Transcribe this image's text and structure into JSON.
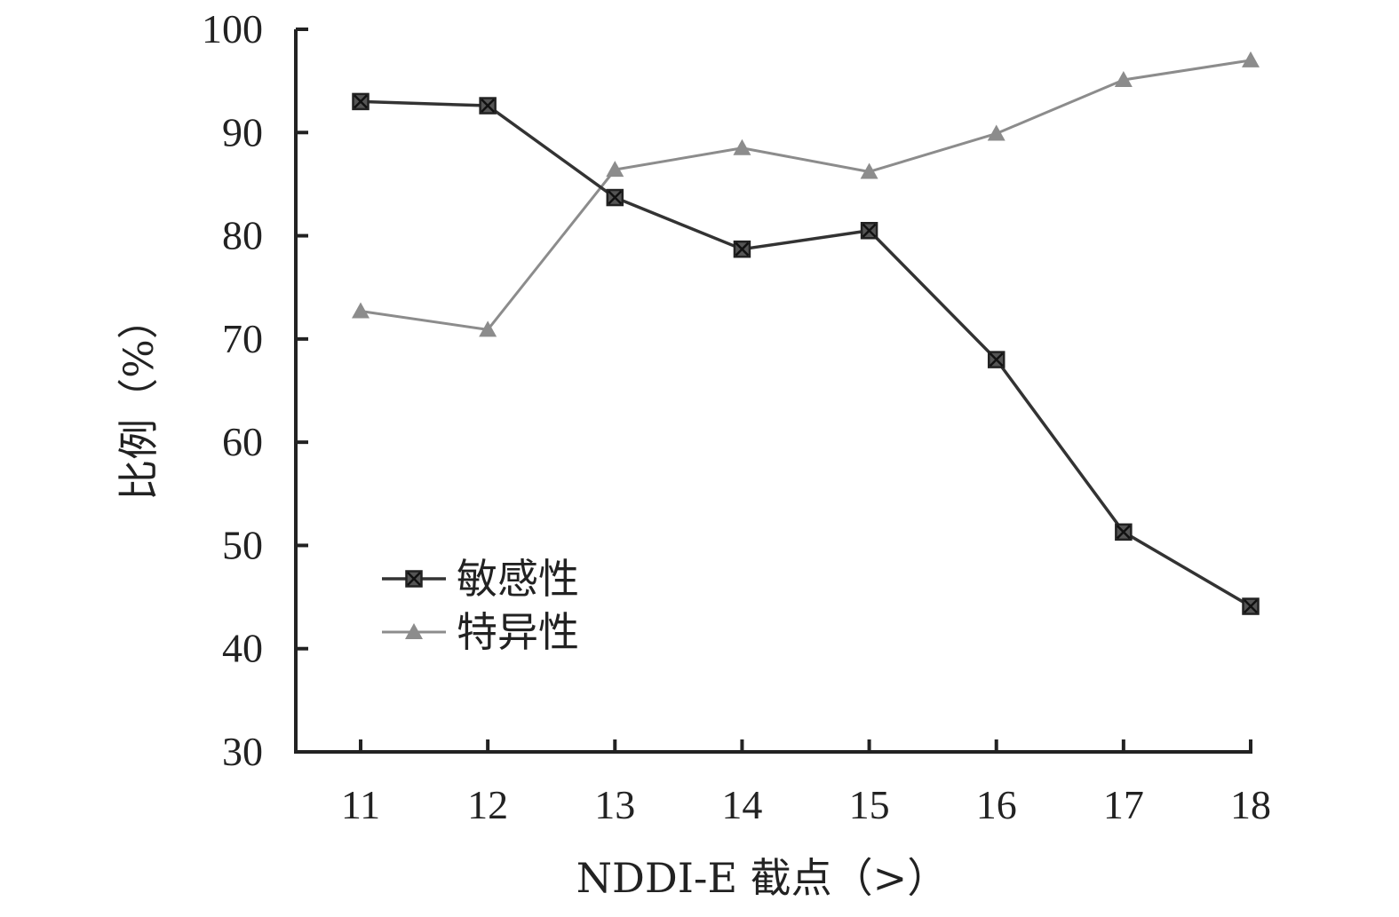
{
  "chart_data": {
    "type": "line",
    "xlabel": "NDDI-E 截点（>）",
    "ylabel": "比例（%）",
    "x": [
      11,
      12,
      13,
      14,
      15,
      16,
      17,
      18
    ],
    "ylim": [
      30,
      100
    ],
    "yticks": [
      30,
      40,
      50,
      60,
      70,
      80,
      90,
      100
    ],
    "grid": false,
    "legend_position": "lower-left",
    "series": [
      {
        "name": "敏感性",
        "marker": "square-x",
        "color": "#333333",
        "values": [
          93.0,
          92.6,
          83.7,
          78.7,
          80.5,
          68.0,
          51.3,
          44.1
        ]
      },
      {
        "name": "特异性",
        "marker": "triangle",
        "color": "#8c8c8c",
        "values": [
          72.7,
          70.9,
          86.4,
          88.5,
          86.2,
          89.9,
          95.1,
          97.0
        ]
      }
    ]
  }
}
